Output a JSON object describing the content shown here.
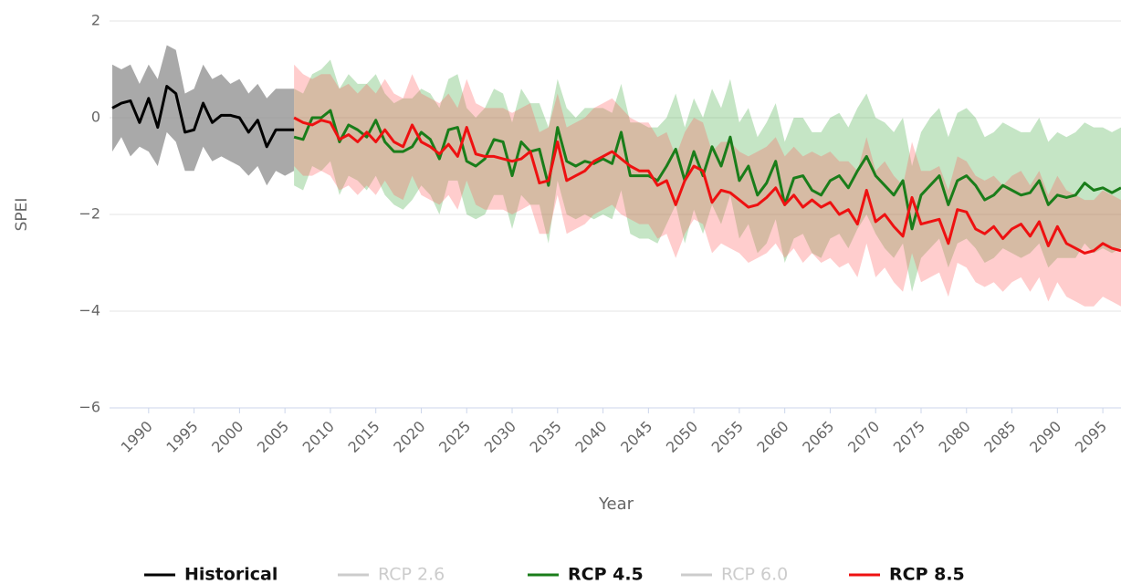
{
  "chart_data": {
    "type": "line",
    "y_label": "SPEI",
    "x_label": "Year",
    "xlim": [
      1986,
      2097
    ],
    "ylim": [
      -6,
      2
    ],
    "xticks": [
      1990,
      1995,
      2000,
      2005,
      2010,
      2015,
      2020,
      2025,
      2030,
      2035,
      2040,
      2045,
      2050,
      2055,
      2060,
      2065,
      2070,
      2075,
      2080,
      2085,
      2090,
      2095
    ],
    "yticks": [
      {
        "value": -6,
        "label": "−6"
      },
      {
        "value": -4,
        "label": "−4"
      },
      {
        "value": -2,
        "label": "−2"
      },
      0,
      2
    ],
    "grid": true,
    "legend": "bottom",
    "series": [
      {
        "name": "Historical",
        "color": "#000000",
        "band_color": "#8c8c8c",
        "visible": true,
        "x": [
          1986,
          1987,
          1988,
          1989,
          1990,
          1991,
          1992,
          1993,
          1994,
          1995,
          1996,
          1997,
          1998,
          1999,
          2000,
          2001,
          2002,
          2003,
          2004,
          2005,
          2006
        ],
        "values": [
          0.2,
          0.3,
          0.35,
          -0.1,
          0.4,
          -0.2,
          0.65,
          0.5,
          -0.3,
          -0.25,
          0.3,
          -0.1,
          0.05,
          0.05,
          0.0,
          -0.3,
          -0.05,
          -0.6,
          -0.25,
          -0.25,
          -0.25
        ],
        "lower": [
          -0.7,
          -0.4,
          -0.8,
          -0.6,
          -0.7,
          -1.0,
          -0.3,
          -0.5,
          -1.1,
          -1.1,
          -0.6,
          -0.9,
          -0.8,
          -0.9,
          -1.0,
          -1.2,
          -1.0,
          -1.4,
          -1.1,
          -1.2,
          -1.1
        ],
        "upper": [
          1.1,
          1.0,
          1.1,
          0.7,
          1.1,
          0.8,
          1.5,
          1.4,
          0.5,
          0.6,
          1.1,
          0.8,
          0.9,
          0.7,
          0.8,
          0.5,
          0.7,
          0.4,
          0.6,
          0.6,
          0.6
        ]
      },
      {
        "name": "RCP 2.6",
        "color": "#cccccc",
        "visible": false,
        "values": []
      },
      {
        "name": "RCP 4.5",
        "color": "#1a7d1a",
        "band_color": "#3fa83f",
        "visible": true,
        "x": [
          2006,
          2007,
          2008,
          2009,
          2010,
          2011,
          2012,
          2013,
          2014,
          2015,
          2016,
          2017,
          2018,
          2019,
          2020,
          2021,
          2022,
          2023,
          2024,
          2025,
          2026,
          2027,
          2028,
          2029,
          2030,
          2031,
          2032,
          2033,
          2034,
          2035,
          2036,
          2037,
          2038,
          2039,
          2040,
          2041,
          2042,
          2043,
          2044,
          2045,
          2046,
          2047,
          2048,
          2049,
          2050,
          2051,
          2052,
          2053,
          2054,
          2055,
          2056,
          2057,
          2058,
          2059,
          2060,
          2061,
          2062,
          2063,
          2064,
          2065,
          2066,
          2067,
          2068,
          2069,
          2070,
          2071,
          2072,
          2073,
          2074,
          2075,
          2076,
          2077,
          2078,
          2079,
          2080,
          2081,
          2082,
          2083,
          2084,
          2085,
          2086,
          2087,
          2088,
          2089,
          2090,
          2091,
          2092,
          2093,
          2094,
          2095,
          2096,
          2097
        ],
        "values": [
          -0.4,
          -0.45,
          0.0,
          0.0,
          0.15,
          -0.5,
          -0.15,
          -0.25,
          -0.4,
          -0.05,
          -0.5,
          -0.7,
          -0.7,
          -0.6,
          -0.3,
          -0.45,
          -0.85,
          -0.25,
          -0.2,
          -0.9,
          -1.0,
          -0.85,
          -0.45,
          -0.5,
          -1.2,
          -0.5,
          -0.7,
          -0.65,
          -1.4,
          -0.2,
          -0.9,
          -1.0,
          -0.9,
          -0.95,
          -0.85,
          -0.95,
          -0.3,
          -1.2,
          -1.2,
          -1.2,
          -1.3,
          -1.0,
          -0.65,
          -1.3,
          -0.7,
          -1.2,
          -0.6,
          -1.0,
          -0.4,
          -1.3,
          -1.0,
          -1.6,
          -1.35,
          -0.9,
          -1.8,
          -1.25,
          -1.2,
          -1.5,
          -1.6,
          -1.3,
          -1.2,
          -1.45,
          -1.1,
          -0.8,
          -1.2,
          -1.4,
          -1.6,
          -1.3,
          -2.3,
          -1.6,
          -1.4,
          -1.2,
          -1.8,
          -1.3,
          -1.2,
          -1.4,
          -1.7,
          -1.6,
          -1.4,
          -1.5,
          -1.6,
          -1.55,
          -1.3,
          -1.8,
          -1.6,
          -1.65,
          -1.6,
          -1.35,
          -1.5,
          -1.45,
          -1.55,
          -1.45
        ],
        "lower": [
          -1.4,
          -1.5,
          -1.0,
          -1.1,
          -0.9,
          -1.6,
          -1.2,
          -1.3,
          -1.5,
          -1.2,
          -1.6,
          -1.8,
          -1.9,
          -1.7,
          -1.4,
          -1.6,
          -2.0,
          -1.3,
          -1.3,
          -2.0,
          -2.1,
          -2.0,
          -1.6,
          -1.6,
          -2.3,
          -1.6,
          -1.8,
          -1.8,
          -2.6,
          -1.3,
          -2.0,
          -2.1,
          -2.0,
          -2.1,
          -2.0,
          -2.1,
          -1.5,
          -2.4,
          -2.5,
          -2.5,
          -2.6,
          -2.2,
          -1.8,
          -2.6,
          -1.9,
          -2.4,
          -1.8,
          -2.2,
          -1.6,
          -2.5,
          -2.2,
          -2.8,
          -2.6,
          -2.1,
          -3.0,
          -2.5,
          -2.4,
          -2.8,
          -2.9,
          -2.5,
          -2.4,
          -2.7,
          -2.3,
          -2.0,
          -2.4,
          -2.7,
          -2.9,
          -2.6,
          -3.6,
          -2.9,
          -2.7,
          -2.5,
          -3.1,
          -2.6,
          -2.5,
          -2.7,
          -3.0,
          -2.9,
          -2.7,
          -2.8,
          -2.9,
          -2.8,
          -2.6,
          -3.1,
          -2.9,
          -2.9,
          -2.9,
          -2.6,
          -2.8,
          -2.7,
          -2.8,
          -2.7
        ],
        "upper": [
          0.6,
          0.5,
          0.9,
          1.0,
          1.2,
          0.6,
          0.9,
          0.7,
          0.7,
          0.9,
          0.5,
          0.3,
          0.4,
          0.4,
          0.6,
          0.5,
          0.2,
          0.8,
          0.9,
          0.2,
          0.0,
          0.2,
          0.6,
          0.5,
          -0.1,
          0.6,
          0.3,
          0.3,
          -0.2,
          0.8,
          0.2,
          0.0,
          0.2,
          0.2,
          0.2,
          0.1,
          0.7,
          -0.1,
          -0.1,
          -0.2,
          -0.2,
          0.0,
          0.5,
          -0.2,
          0.4,
          0.0,
          0.6,
          0.2,
          0.8,
          -0.1,
          0.2,
          -0.4,
          -0.1,
          0.3,
          -0.5,
          0.0,
          0.0,
          -0.3,
          -0.3,
          0.0,
          0.1,
          -0.2,
          0.2,
          0.5,
          0.0,
          -0.1,
          -0.3,
          0.0,
          -1.0,
          -0.3,
          0.0,
          0.2,
          -0.4,
          0.1,
          0.2,
          0.0,
          -0.4,
          -0.3,
          -0.1,
          -0.2,
          -0.3,
          -0.3,
          0.0,
          -0.5,
          -0.3,
          -0.4,
          -0.3,
          -0.1,
          -0.2,
          -0.2,
          -0.3,
          -0.2
        ]
      },
      {
        "name": "RCP 6.0",
        "color": "#cccccc",
        "visible": false,
        "values": []
      },
      {
        "name": "RCP 8.5",
        "color": "#ee1111",
        "band_color": "#ff5a5a",
        "visible": true,
        "x": [
          2006,
          2007,
          2008,
          2009,
          2010,
          2011,
          2012,
          2013,
          2014,
          2015,
          2016,
          2017,
          2018,
          2019,
          2020,
          2021,
          2022,
          2023,
          2024,
          2025,
          2026,
          2027,
          2028,
          2029,
          2030,
          2031,
          2032,
          2033,
          2034,
          2035,
          2036,
          2037,
          2038,
          2039,
          2040,
          2041,
          2042,
          2043,
          2044,
          2045,
          2046,
          2047,
          2048,
          2049,
          2050,
          2051,
          2052,
          2053,
          2054,
          2055,
          2056,
          2057,
          2058,
          2059,
          2060,
          2061,
          2062,
          2063,
          2064,
          2065,
          2066,
          2067,
          2068,
          2069,
          2070,
          2071,
          2072,
          2073,
          2074,
          2075,
          2076,
          2077,
          2078,
          2079,
          2080,
          2081,
          2082,
          2083,
          2084,
          2085,
          2086,
          2087,
          2088,
          2089,
          2090,
          2091,
          2092,
          2093,
          2094,
          2095,
          2096,
          2097
        ],
        "values": [
          0.0,
          -0.1,
          -0.15,
          -0.05,
          -0.1,
          -0.45,
          -0.35,
          -0.5,
          -0.3,
          -0.5,
          -0.25,
          -0.5,
          -0.6,
          -0.15,
          -0.5,
          -0.6,
          -0.75,
          -0.55,
          -0.8,
          -0.2,
          -0.75,
          -0.8,
          -0.8,
          -0.85,
          -0.9,
          -0.85,
          -0.7,
          -1.35,
          -1.3,
          -0.5,
          -1.3,
          -1.2,
          -1.1,
          -0.9,
          -0.8,
          -0.7,
          -0.85,
          -1.0,
          -1.1,
          -1.1,
          -1.4,
          -1.3,
          -1.8,
          -1.3,
          -1.0,
          -1.1,
          -1.75,
          -1.5,
          -1.55,
          -1.7,
          -1.85,
          -1.8,
          -1.65,
          -1.45,
          -1.8,
          -1.6,
          -1.85,
          -1.7,
          -1.85,
          -1.75,
          -2.0,
          -1.9,
          -2.2,
          -1.5,
          -2.15,
          -2.0,
          -2.25,
          -2.45,
          -1.65,
          -2.2,
          -2.15,
          -2.1,
          -2.6,
          -1.9,
          -1.95,
          -2.3,
          -2.4,
          -2.25,
          -2.5,
          -2.3,
          -2.2,
          -2.45,
          -2.15,
          -2.65,
          -2.25,
          -2.6,
          -2.7,
          -2.8,
          -2.75,
          -2.6,
          -2.7,
          -2.75
        ],
        "lower": [
          -1.0,
          -1.2,
          -1.2,
          -1.1,
          -1.2,
          -1.5,
          -1.4,
          -1.6,
          -1.4,
          -1.6,
          -1.3,
          -1.6,
          -1.7,
          -1.2,
          -1.6,
          -1.7,
          -1.8,
          -1.6,
          -1.9,
          -1.3,
          -1.8,
          -1.9,
          -1.9,
          -1.9,
          -2.0,
          -1.9,
          -1.8,
          -2.4,
          -2.4,
          -1.6,
          -2.4,
          -2.3,
          -2.2,
          -2.0,
          -1.9,
          -1.8,
          -2.0,
          -2.1,
          -2.2,
          -2.2,
          -2.5,
          -2.4,
          -2.9,
          -2.4,
          -2.1,
          -2.2,
          -2.8,
          -2.6,
          -2.7,
          -2.8,
          -3.0,
          -2.9,
          -2.8,
          -2.6,
          -2.9,
          -2.7,
          -3.0,
          -2.8,
          -3.0,
          -2.9,
          -3.1,
          -3.0,
          -3.3,
          -2.6,
          -3.3,
          -3.1,
          -3.4,
          -3.6,
          -2.8,
          -3.4,
          -3.3,
          -3.2,
          -3.7,
          -3.0,
          -3.1,
          -3.4,
          -3.5,
          -3.4,
          -3.6,
          -3.4,
          -3.3,
          -3.6,
          -3.3,
          -3.8,
          -3.4,
          -3.7,
          -3.8,
          -3.9,
          -3.9,
          -3.7,
          -3.8,
          -3.9
        ],
        "upper": [
          1.1,
          0.9,
          0.8,
          0.9,
          0.9,
          0.6,
          0.7,
          0.5,
          0.7,
          0.5,
          0.8,
          0.5,
          0.4,
          0.9,
          0.5,
          0.4,
          0.3,
          0.5,
          0.2,
          0.8,
          0.3,
          0.2,
          0.2,
          0.2,
          0.1,
          0.2,
          0.3,
          -0.3,
          -0.2,
          0.5,
          -0.2,
          -0.1,
          0.0,
          0.2,
          0.3,
          0.4,
          0.2,
          0.0,
          -0.1,
          -0.1,
          -0.4,
          -0.3,
          -0.8,
          -0.3,
          0.0,
          -0.1,
          -0.7,
          -0.5,
          -0.5,
          -0.7,
          -0.8,
          -0.7,
          -0.6,
          -0.4,
          -0.8,
          -0.6,
          -0.8,
          -0.7,
          -0.8,
          -0.7,
          -0.9,
          -0.9,
          -1.1,
          -0.4,
          -1.1,
          -0.9,
          -1.2,
          -1.4,
          -0.5,
          -1.1,
          -1.1,
          -1.0,
          -1.5,
          -0.8,
          -0.9,
          -1.2,
          -1.3,
          -1.2,
          -1.4,
          -1.2,
          -1.1,
          -1.4,
          -1.1,
          -1.6,
          -1.2,
          -1.5,
          -1.6,
          -1.7,
          -1.7,
          -1.5,
          -1.6,
          -1.7
        ]
      }
    ]
  }
}
